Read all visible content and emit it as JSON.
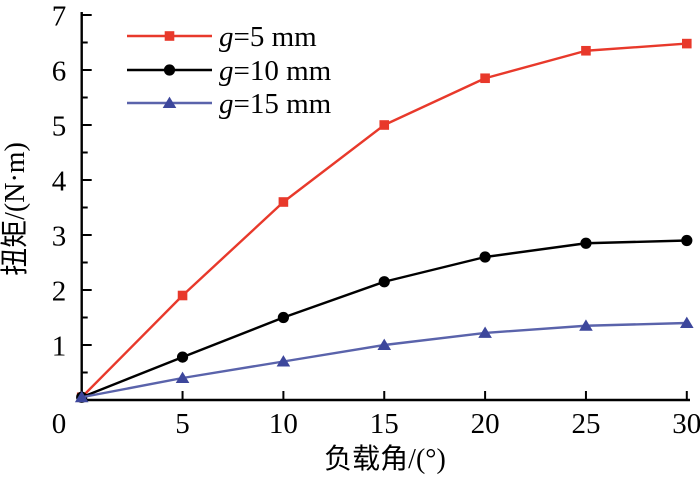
{
  "chart_data": {
    "type": "line",
    "title": "",
    "xlabel": "负载角/(°)",
    "ylabel": "扭矩/(N·m)",
    "xlim": [
      0,
      30
    ],
    "ylim": [
      0,
      7
    ],
    "grid": false,
    "legend_position": "top-left-inside",
    "origin_label": "0",
    "x": [
      0,
      5,
      10,
      15,
      20,
      25,
      30
    ],
    "x_ticks": [
      5,
      10,
      15,
      20,
      25,
      30
    ],
    "x_tick_labels": [
      "5",
      "10",
      "15",
      "20",
      "25",
      "30"
    ],
    "y_ticks": [
      1,
      2,
      3,
      4,
      5,
      6,
      7
    ],
    "y_tick_labels": [
      "1",
      "2",
      "3",
      "4",
      "5",
      "6",
      "7"
    ],
    "y_minor_ticks": [
      0.5,
      1.5,
      2.5,
      3.5,
      4.5,
      5.5,
      6.5
    ],
    "axis_color": "#000000",
    "series": [
      {
        "name": "g=5 mm",
        "marker": "square",
        "line_color": "#e8392b",
        "marker_color": "#e8392b",
        "values": [
          0.05,
          1.9,
          3.6,
          5.0,
          5.85,
          6.35,
          6.48
        ]
      },
      {
        "name": "g=10 mm",
        "marker": "circle",
        "line_color": "#000000",
        "marker_color": "#000000",
        "values": [
          0.05,
          0.78,
          1.5,
          2.15,
          2.6,
          2.85,
          2.9
        ]
      },
      {
        "name": "g=15 mm",
        "marker": "triangle",
        "line_color": "#5a63ab",
        "marker_color": "#3d479c",
        "values": [
          0.05,
          0.4,
          0.7,
          1.0,
          1.22,
          1.35,
          1.4
        ]
      }
    ]
  }
}
